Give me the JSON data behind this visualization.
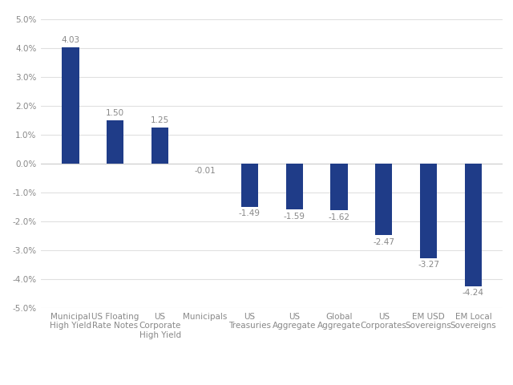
{
  "categories": [
    "Municipal\nHigh Yield",
    "US Floating\nRate Notes",
    "US\nCorporate\nHigh Yield",
    "Municipals",
    "US\nTreasuries",
    "US\nAggregate",
    "Global\nAggregate",
    "US\nCorporates",
    "EM USD\nSovereigns",
    "EM Local\nSovereigns"
  ],
  "values": [
    4.03,
    1.5,
    1.25,
    -0.01,
    -1.49,
    -1.59,
    -1.62,
    -2.47,
    -3.27,
    -4.24
  ],
  "bar_color": "#1f3c88",
  "background_color": "#ffffff",
  "plot_bg_color": "#ffffff",
  "ylim": [
    -5.0,
    5.0
  ],
  "yticks": [
    -5.0,
    -4.0,
    -3.0,
    -2.0,
    -1.0,
    0.0,
    1.0,
    2.0,
    3.0,
    4.0,
    5.0
  ],
  "value_labels": [
    "4.03",
    "1.50",
    "1.25",
    "-0.01",
    "-1.49",
    "-1.59",
    "-1.62",
    "-2.47",
    "-3.27",
    "-4.24"
  ],
  "label_fontsize": 7.5,
  "tick_label_fontsize": 7.5,
  "bar_width": 0.38,
  "grid_color": "#e0e0e0",
  "label_color": "#888888",
  "zero_line_color": "#cccccc"
}
